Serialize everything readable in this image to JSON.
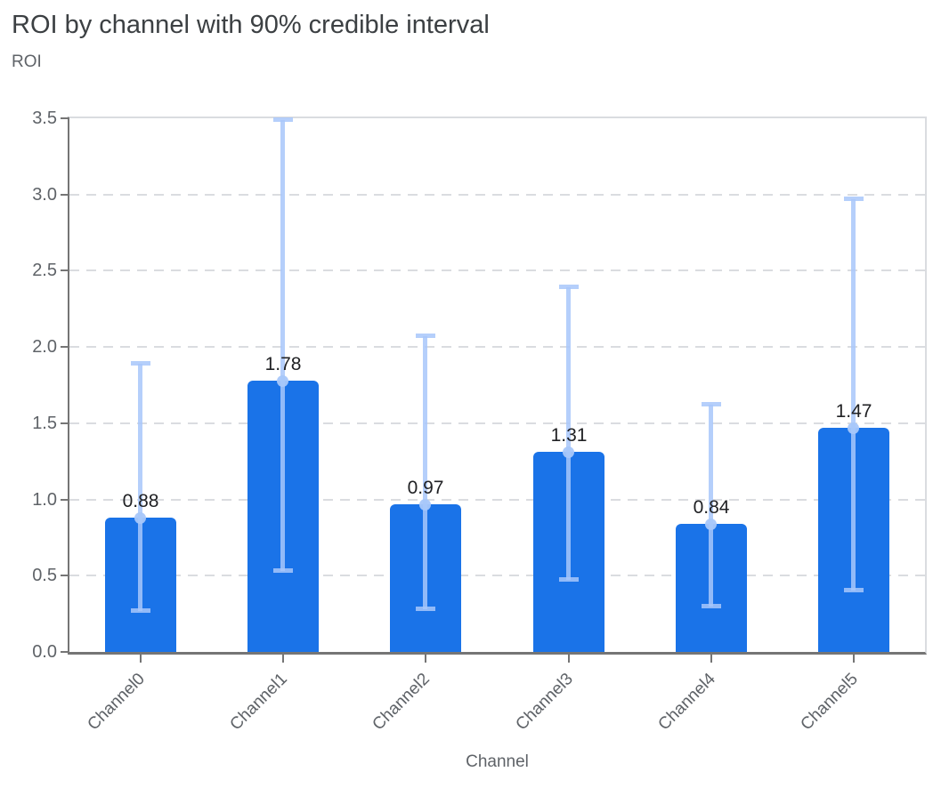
{
  "chart": {
    "title": "ROI by channel with 90% credible interval",
    "y_axis_title": "ROI",
    "x_axis_title": "Channel"
  },
  "chart_data": {
    "type": "bar",
    "title": "ROI by channel with 90% credible interval",
    "xlabel": "Channel",
    "ylabel": "ROI",
    "categories": [
      "Channel0",
      "Channel1",
      "Channel2",
      "Channel3",
      "Channel4",
      "Channel5"
    ],
    "series": [
      {
        "name": "ROI",
        "values": [
          0.88,
          1.78,
          0.97,
          1.31,
          0.84,
          1.47
        ],
        "labels": [
          "0.88",
          "1.78",
          "0.97",
          "1.31",
          "0.84",
          "1.47"
        ]
      }
    ],
    "credible_interval_90": {
      "lower": [
        0.27,
        0.53,
        0.28,
        0.47,
        0.3,
        0.4
      ],
      "upper": [
        1.89,
        3.49,
        2.07,
        2.39,
        1.62,
        2.97
      ]
    },
    "ylim": [
      0,
      3.5
    ],
    "yticks": [
      0,
      0.5,
      1,
      1.5,
      2,
      2.5,
      3,
      3.5
    ],
    "ytick_labels": [
      "0.0",
      "0.5",
      "1.0",
      "1.5",
      "2.0",
      "2.5",
      "3.0",
      "3.5"
    ],
    "grid": true,
    "legend_position": "none",
    "colors": {
      "bar": "#1a73e8",
      "interval": "#a8c7fa",
      "gridline": "#dadce0",
      "axis_line": "#757575",
      "tick_label": "#5f6368",
      "title": "#3c4043",
      "value_label": "#202124"
    }
  }
}
